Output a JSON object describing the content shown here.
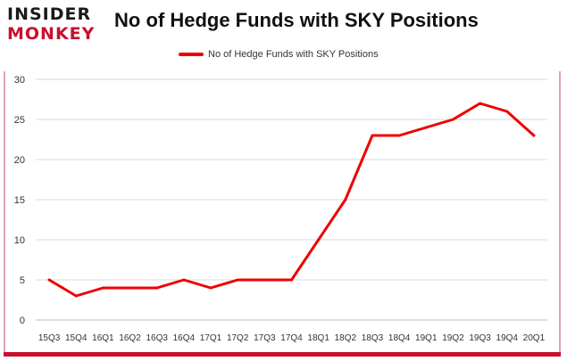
{
  "logo": {
    "line1": "INSIDER",
    "line2": "MONKEY"
  },
  "chart_data": {
    "type": "line",
    "title": "No of Hedge Funds with SKY Positions",
    "xlabel": "",
    "ylabel": "",
    "categories": [
      "15Q3",
      "15Q4",
      "16Q1",
      "16Q2",
      "16Q3",
      "16Q4",
      "17Q1",
      "17Q2",
      "17Q3",
      "17Q4",
      "18Q1",
      "18Q2",
      "18Q3",
      "18Q4",
      "19Q1",
      "19Q2",
      "19Q3",
      "19Q4",
      "20Q1"
    ],
    "series": [
      {
        "name": "No of Hedge Funds with SKY Positions",
        "values": [
          5,
          3,
          4,
          4,
          4,
          5,
          4,
          5,
          5,
          5,
          10,
          15,
          23,
          23,
          24,
          25,
          27,
          26,
          23
        ],
        "color": "#ee0000"
      }
    ],
    "ylim": [
      0,
      30
    ],
    "yticks": [
      0,
      5,
      10,
      15,
      20,
      25,
      30
    ],
    "grid": true,
    "legend": "top-center"
  }
}
